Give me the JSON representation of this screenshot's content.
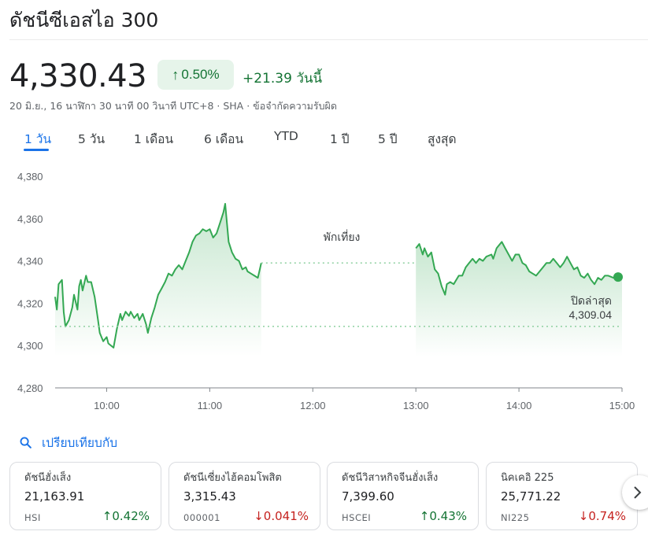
{
  "header": {
    "title": "ดัชนีซีเอสไอ 300",
    "price": "4,330.43",
    "pct_change": "0.50%",
    "abs_change": "+21.39 วันนี้",
    "meta": "20 มิ.ย., 16 นาฬิกา 30 นาที 00 วินาที UTC+8 · SHA · ข้อจำกัดความรับผิด"
  },
  "tabs": [
    {
      "label": "1 วัน",
      "active": true
    },
    {
      "label": "5 วัน"
    },
    {
      "label": "1 เดือน"
    },
    {
      "label": "6 เดือน"
    },
    {
      "label": "YTD"
    },
    {
      "label": "1 ปี"
    },
    {
      "label": "5 ปี"
    },
    {
      "label": "สูงสุด"
    }
  ],
  "chart_data": {
    "type": "line",
    "ylim": [
      4280,
      4380
    ],
    "yticks": [
      "4,380",
      "4,360",
      "4,340",
      "4,320",
      "4,300",
      "4,280"
    ],
    "ytick_values": [
      4380,
      4360,
      4340,
      4320,
      4300,
      4280
    ],
    "xlim": [
      "09:30",
      "15:00"
    ],
    "xticks": [
      "10:00",
      "11:00",
      "12:00",
      "13:00",
      "14:00",
      "15:00"
    ],
    "xtick_values": [
      "10:00",
      "11:00",
      "12:00",
      "13:00",
      "14:00",
      "15:00"
    ],
    "previous_close": 4309.04,
    "previous_close_label": "ปิดล่าสุด",
    "previous_close_text": "4,309.04",
    "lunch_break_label": "พักเที่ยง",
    "lunch_break": [
      "11:30",
      "13:00"
    ],
    "line_color": "#34a853",
    "grid": false,
    "series": [
      {
        "morning": [
          [
            "09:30",
            4323
          ],
          [
            "09:31",
            4317
          ],
          [
            "09:32",
            4329
          ],
          [
            "09:34",
            4331
          ],
          [
            "09:35",
            4316
          ],
          [
            "09:36",
            4309
          ],
          [
            "09:38",
            4312
          ],
          [
            "09:40",
            4318
          ],
          [
            "09:41",
            4324
          ],
          [
            "09:43",
            4317
          ],
          [
            "09:44",
            4328
          ],
          [
            "09:45",
            4331
          ],
          [
            "09:46",
            4326
          ],
          [
            "09:48",
            4333
          ],
          [
            "09:49",
            4330
          ],
          [
            "09:51",
            4330
          ],
          [
            "09:53",
            4323
          ],
          [
            "09:55",
            4312
          ],
          [
            "09:56",
            4306
          ],
          [
            "09:58",
            4302
          ],
          [
            "10:00",
            4304
          ],
          [
            "10:01",
            4301
          ],
          [
            "10:04",
            4299
          ],
          [
            "10:06",
            4308
          ],
          [
            "10:08",
            4315
          ],
          [
            "10:09",
            4312
          ],
          [
            "10:11",
            4316
          ],
          [
            "10:13",
            4314
          ],
          [
            "10:14",
            4316
          ],
          [
            "10:16",
            4313
          ],
          [
            "10:18",
            4315
          ],
          [
            "10:19",
            4312
          ],
          [
            "10:21",
            4315
          ],
          [
            "10:23",
            4310
          ],
          [
            "10:24",
            4306
          ],
          [
            "10:26",
            4313
          ],
          [
            "10:28",
            4318
          ],
          [
            "10:30",
            4324
          ],
          [
            "10:32",
            4327
          ],
          [
            "10:34",
            4330
          ],
          [
            "10:36",
            4334
          ],
          [
            "10:38",
            4333
          ],
          [
            "10:40",
            4336
          ],
          [
            "10:42",
            4338
          ],
          [
            "10:44",
            4336
          ],
          [
            "10:46",
            4340
          ],
          [
            "10:48",
            4344
          ],
          [
            "10:50",
            4349
          ],
          [
            "10:52",
            4352
          ],
          [
            "10:54",
            4353
          ],
          [
            "10:56",
            4355
          ],
          [
            "10:58",
            4354
          ],
          [
            "11:00",
            4355
          ],
          [
            "11:02",
            4351
          ],
          [
            "11:04",
            4353
          ],
          [
            "11:06",
            4358
          ],
          [
            "11:08",
            4363
          ],
          [
            "11:09",
            4367
          ],
          [
            "11:10",
            4358
          ],
          [
            "11:11",
            4349
          ],
          [
            "11:13",
            4344
          ],
          [
            "11:15",
            4341
          ],
          [
            "11:17",
            4340
          ],
          [
            "11:19",
            4336
          ],
          [
            "11:21",
            4337
          ],
          [
            "11:22",
            4335
          ],
          [
            "11:24",
            4334
          ],
          [
            "11:26",
            4333
          ],
          [
            "11:28",
            4332
          ],
          [
            "11:30",
            4339
          ]
        ],
        "afternoon": [
          [
            "13:00",
            4346
          ],
          [
            "13:02",
            4348
          ],
          [
            "13:04",
            4343
          ],
          [
            "13:05",
            4346
          ],
          [
            "13:07",
            4342
          ],
          [
            "13:09",
            4344
          ],
          [
            "13:11",
            4336
          ],
          [
            "13:13",
            4334
          ],
          [
            "13:15",
            4328
          ],
          [
            "13:17",
            4324
          ],
          [
            "13:18",
            4329
          ],
          [
            "13:20",
            4330
          ],
          [
            "13:22",
            4329
          ],
          [
            "13:25",
            4333
          ],
          [
            "13:27",
            4333
          ],
          [
            "13:29",
            4337
          ],
          [
            "13:31",
            4339
          ],
          [
            "13:33",
            4341
          ],
          [
            "13:35",
            4339
          ],
          [
            "13:37",
            4341
          ],
          [
            "13:39",
            4340
          ],
          [
            "13:41",
            4342
          ],
          [
            "13:44",
            4343
          ],
          [
            "13:45",
            4341
          ],
          [
            "13:47",
            4346
          ],
          [
            "13:48",
            4347
          ],
          [
            "13:50",
            4349
          ],
          [
            "13:52",
            4346
          ],
          [
            "13:54",
            4343
          ],
          [
            "13:56",
            4340
          ],
          [
            "13:58",
            4343
          ],
          [
            "14:00",
            4343
          ],
          [
            "14:02",
            4339
          ],
          [
            "14:04",
            4338
          ],
          [
            "14:06",
            4335
          ],
          [
            "14:08",
            4334
          ],
          [
            "14:10",
            4333
          ],
          [
            "14:12",
            4335
          ],
          [
            "14:14",
            4337
          ],
          [
            "14:16",
            4339
          ],
          [
            "14:18",
            4339
          ],
          [
            "14:20",
            4341
          ],
          [
            "14:22",
            4339
          ],
          [
            "14:24",
            4337
          ],
          [
            "14:26",
            4339
          ],
          [
            "14:28",
            4342
          ],
          [
            "14:30",
            4339
          ],
          [
            "14:32",
            4336
          ],
          [
            "14:34",
            4337
          ],
          [
            "14:36",
            4333
          ],
          [
            "14:38",
            4332
          ],
          [
            "14:40",
            4334
          ],
          [
            "14:42",
            4331
          ],
          [
            "14:44",
            4329
          ],
          [
            "14:46",
            4332
          ],
          [
            "14:48",
            4331
          ],
          [
            "14:50",
            4333
          ],
          [
            "14:52",
            4333
          ],
          [
            "14:55",
            4332
          ],
          [
            "14:57",
            4332
          ],
          [
            "15:00",
            4332
          ]
        ]
      }
    ]
  },
  "compare_label": "เปรียบเทียบกับ",
  "related": [
    {
      "name": "ดัชนีฮั่งเส็ง",
      "value": "21,163.91",
      "symbol": "HSI",
      "change": "0.42%",
      "dir": "up"
    },
    {
      "name": "ดัชนีเซี่ยงไฮ้คอมโพสิต",
      "value": "3,315.43",
      "symbol": "000001",
      "change": "0.041%",
      "dir": "down"
    },
    {
      "name": "ดัชนีวิสาหกิจจีนฮั่งเส็ง",
      "value": "7,399.60",
      "symbol": "HSCEI",
      "change": "0.43%",
      "dir": "up"
    },
    {
      "name": "นิคเคอิ 225",
      "value": "25,771.22",
      "symbol": "NI225",
      "change": "0.74%",
      "dir": "down"
    }
  ],
  "icons": {
    "search": "search-icon",
    "next": "chevron-right-icon",
    "up": "arrow-up-icon",
    "down": "arrow-down-icon"
  },
  "colors": {
    "accent": "#1a73e8",
    "positive": "#137333",
    "negative": "#c5221f",
    "line": "#34a853"
  }
}
